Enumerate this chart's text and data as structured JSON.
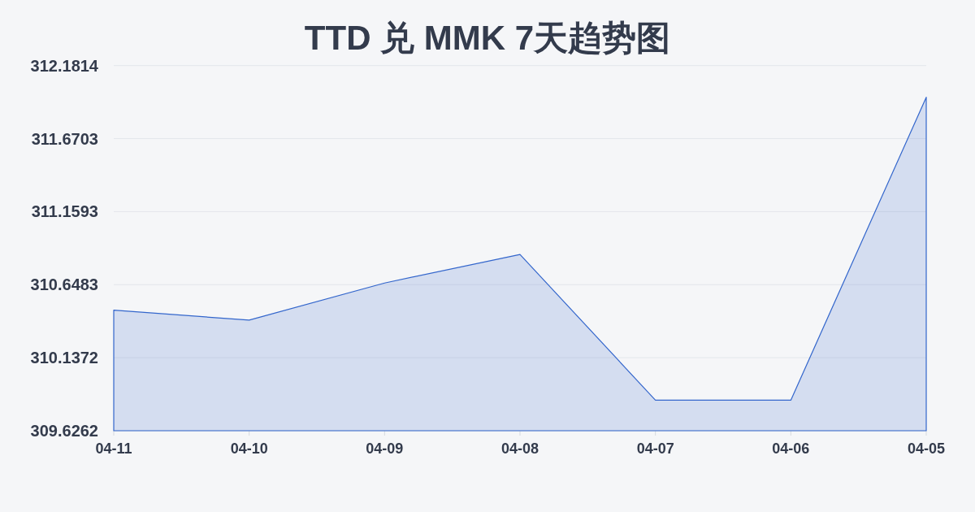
{
  "chart_data": {
    "type": "area",
    "title": "TTD 兑 MMK 7天趋势图",
    "categories": [
      "04-11",
      "04-10",
      "04-09",
      "04-08",
      "04-07",
      "04-06",
      "04-05"
    ],
    "series": [
      {
        "color": "#3366cc",
        "values": [
          310.47,
          310.4,
          310.66,
          310.86,
          309.84,
          309.84,
          311.96
        ]
      }
    ],
    "ylim": [
      309.6262,
      312.1814
    ],
    "yticks": [
      309.6262,
      310.1372,
      310.6483,
      311.1593,
      311.6703,
      312.1814
    ],
    "grid": "y"
  }
}
